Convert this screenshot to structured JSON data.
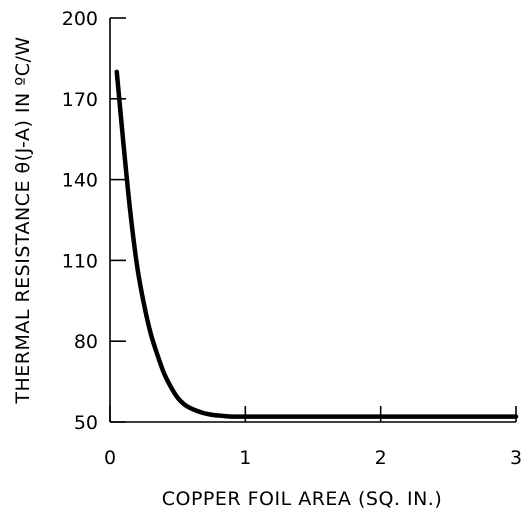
{
  "chart_data": {
    "type": "line",
    "title": "",
    "xlabel": "COPPER FOIL AREA (SQ. IN.)",
    "ylabel": "THERMAL RESISTANCE θ(J-A) IN ºC/W",
    "xlim": [
      0,
      3
    ],
    "ylim": [
      50,
      200
    ],
    "x_ticks": [
      "0",
      "1",
      "2",
      "3"
    ],
    "y_ticks": [
      "50",
      "80",
      "110",
      "140",
      "170",
      "200"
    ],
    "grid": false,
    "legend": "none",
    "series": [
      {
        "x": [
          0.05,
          0.1,
          0.15,
          0.2,
          0.25,
          0.3,
          0.35,
          0.4,
          0.45,
          0.5,
          0.55,
          0.6,
          0.65,
          0.7,
          0.75,
          0.8,
          0.85,
          0.9,
          1.0,
          1.5,
          2.0,
          2.5,
          3.0
        ],
        "values": [
          180,
          153,
          128,
          108,
          94,
          83,
          75,
          68,
          63,
          59,
          56.5,
          55,
          54,
          53.2,
          52.7,
          52.4,
          52.2,
          52.0,
          52,
          52,
          52,
          52,
          52
        ]
      }
    ]
  }
}
